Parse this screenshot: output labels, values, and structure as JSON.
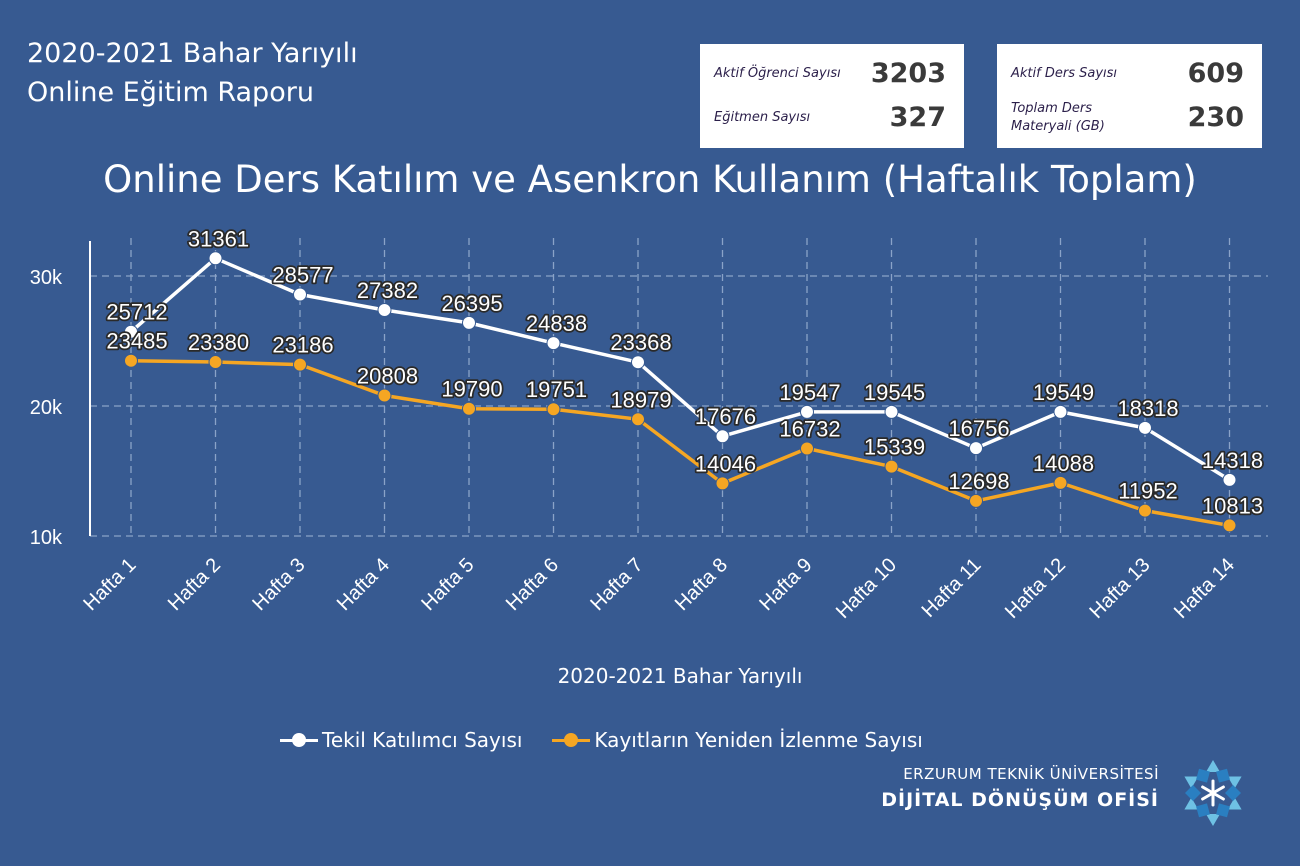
{
  "header": {
    "title_line1": "2020-2021 Bahar Yarıyılı",
    "title_line2": "Online Eğitim Raporu"
  },
  "stats": {
    "card1": [
      {
        "label": "Aktif Öğrenci Sayısı",
        "value": "3203"
      },
      {
        "label": "Eğitmen Sayısı",
        "value": "327"
      }
    ],
    "card2": [
      {
        "label": "Aktif Ders Sayısı",
        "value": "609"
      },
      {
        "label_line1": "Toplam Ders",
        "label_line2": "Materyali (GB)",
        "value": "230"
      }
    ]
  },
  "chart_data": {
    "type": "line",
    "title": "Online Ders Katılım ve Asenkron Kullanım (Haftalık Toplam)",
    "xlabel": "2020-2021 Bahar Yarıyılı",
    "ylabel": "",
    "categories": [
      "Hafta 1",
      "Hafta 2",
      "Hafta 3",
      "Hafta 4",
      "Hafta 5",
      "Hafta 6",
      "Hafta 7",
      "Hafta 8",
      "Hafta 9",
      "Hafta 10",
      "Hafta 11",
      "Hafta 12",
      "Hafta 13",
      "Hafta 14"
    ],
    "series": [
      {
        "name": "Tekil Katılımcı Sayısı",
        "color": "#ffffff",
        "values": [
          25712,
          31361,
          28577,
          27382,
          26395,
          24838,
          23368,
          17676,
          19547,
          19545,
          16756,
          19549,
          18318,
          14318
        ]
      },
      {
        "name": "Kayıtların Yeniden İzlenme Sayısı",
        "color": "#f5a623",
        "values": [
          23485,
          23380,
          23186,
          20808,
          19790,
          19751,
          18979,
          14046,
          16732,
          15339,
          12698,
          14088,
          11952,
          10813
        ]
      }
    ],
    "ylim": [
      10000,
      32000
    ],
    "yticks": [
      10000,
      20000,
      30000
    ],
    "ytick_labels": [
      "10k",
      "20k",
      "30k"
    ],
    "grid": true,
    "legend_position": "bottom"
  },
  "footer": {
    "org_line1": "ERZURUM TEKNİK ÜNİVERSİTESİ",
    "org_line2": "DİJİTAL DÖNÜŞÜM OFİSİ"
  }
}
